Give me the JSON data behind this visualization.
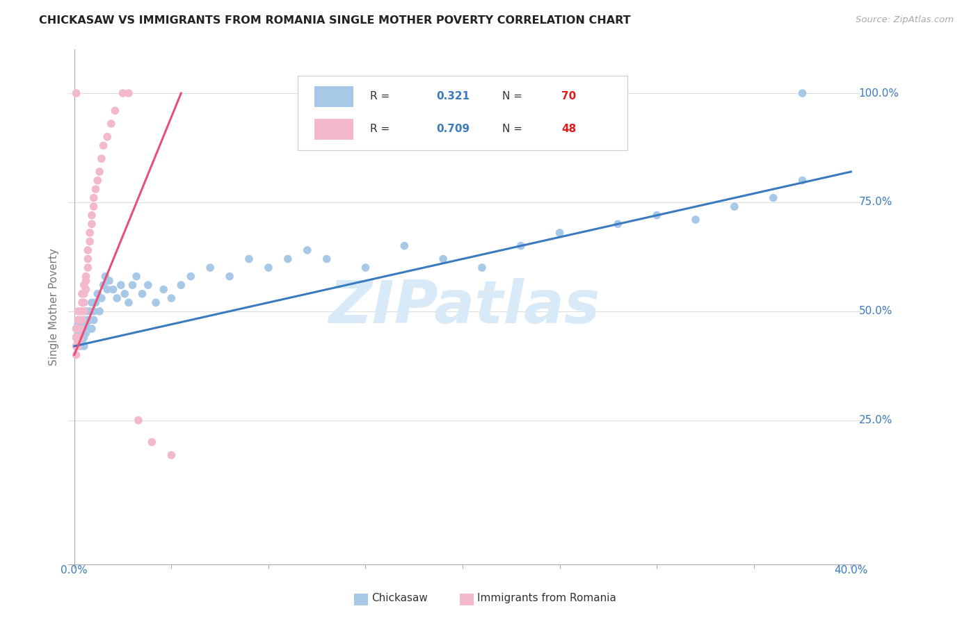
{
  "title": "CHICKASAW VS IMMIGRANTS FROM ROMANIA SINGLE MOTHER POVERTY CORRELATION CHART",
  "source": "Source: ZipAtlas.com",
  "ylabel": "Single Mother Poverty",
  "right_yticks": [
    "25.0%",
    "50.0%",
    "75.0%",
    "100.0%"
  ],
  "right_ytick_vals": [
    0.25,
    0.5,
    0.75,
    1.0
  ],
  "blue_r": "0.321",
  "blue_n": "70",
  "pink_r": "0.709",
  "pink_n": "48",
  "blue_scatter_color": "#a8c8e8",
  "pink_scatter_color": "#f4b8cc",
  "blue_line_color": "#3a7abf",
  "pink_line_color": "#e8507a",
  "grid_color": "#dddddd",
  "text_dark": "#333333",
  "text_blue": "#3a7abf",
  "text_red": "#e31a1c",
  "watermark_color": "#d8eaf8",
  "xlim_min": 0.0,
  "xlim_max": 0.4,
  "ylim_min": 0.0,
  "ylim_max": 1.05,
  "xlabel_ticks": [
    0.0,
    0.05,
    0.1,
    0.15,
    0.2,
    0.25,
    0.3,
    0.35,
    0.4
  ],
  "bottom_legend_1": "Chickasaw",
  "bottom_legend_2": "Immigrants from Romania",
  "blue_x": [
    0.001,
    0.001,
    0.001,
    0.002,
    0.002,
    0.002,
    0.003,
    0.003,
    0.003,
    0.003,
    0.004,
    0.004,
    0.004,
    0.005,
    0.005,
    0.005,
    0.005,
    0.006,
    0.006,
    0.006,
    0.007,
    0.007,
    0.008,
    0.008,
    0.009,
    0.009,
    0.01,
    0.01,
    0.011,
    0.012,
    0.013,
    0.014,
    0.015,
    0.016,
    0.017,
    0.018,
    0.02,
    0.022,
    0.024,
    0.026,
    0.028,
    0.03,
    0.032,
    0.035,
    0.038,
    0.042,
    0.046,
    0.05,
    0.055,
    0.06,
    0.07,
    0.08,
    0.09,
    0.1,
    0.11,
    0.12,
    0.13,
    0.15,
    0.17,
    0.19,
    0.21,
    0.23,
    0.25,
    0.28,
    0.3,
    0.32,
    0.34,
    0.36,
    0.375,
    0.375
  ],
  "blue_y": [
    0.44,
    0.46,
    0.42,
    0.43,
    0.45,
    0.47,
    0.44,
    0.46,
    0.48,
    0.42,
    0.45,
    0.47,
    0.43,
    0.44,
    0.46,
    0.48,
    0.42,
    0.45,
    0.47,
    0.5,
    0.46,
    0.48,
    0.48,
    0.5,
    0.46,
    0.52,
    0.5,
    0.48,
    0.52,
    0.54,
    0.5,
    0.53,
    0.56,
    0.58,
    0.55,
    0.57,
    0.55,
    0.53,
    0.56,
    0.54,
    0.52,
    0.56,
    0.58,
    0.54,
    0.56,
    0.52,
    0.55,
    0.53,
    0.56,
    0.58,
    0.6,
    0.58,
    0.62,
    0.6,
    0.62,
    0.64,
    0.62,
    0.6,
    0.65,
    0.62,
    0.6,
    0.65,
    0.68,
    0.7,
    0.72,
    0.71,
    0.74,
    0.76,
    0.8,
    1.0
  ],
  "pink_x": [
    0.001,
    0.001,
    0.001,
    0.001,
    0.001,
    0.002,
    0.002,
    0.002,
    0.002,
    0.002,
    0.002,
    0.003,
    0.003,
    0.003,
    0.003,
    0.004,
    0.004,
    0.004,
    0.004,
    0.005,
    0.005,
    0.005,
    0.005,
    0.006,
    0.006,
    0.006,
    0.007,
    0.007,
    0.007,
    0.008,
    0.008,
    0.009,
    0.009,
    0.01,
    0.01,
    0.011,
    0.012,
    0.013,
    0.014,
    0.015,
    0.017,
    0.019,
    0.021,
    0.025,
    0.028,
    0.033,
    0.04,
    0.05
  ],
  "pink_y": [
    0.44,
    0.46,
    0.42,
    0.4,
    1.0,
    0.44,
    0.46,
    0.48,
    0.5,
    0.43,
    0.42,
    0.46,
    0.48,
    0.44,
    0.46,
    0.5,
    0.52,
    0.48,
    0.54,
    0.52,
    0.5,
    0.54,
    0.56,
    0.55,
    0.57,
    0.58,
    0.6,
    0.62,
    0.64,
    0.66,
    0.68,
    0.7,
    0.72,
    0.74,
    0.76,
    0.78,
    0.8,
    0.82,
    0.85,
    0.88,
    0.9,
    0.93,
    0.96,
    1.0,
    1.0,
    0.25,
    0.2,
    0.17
  ],
  "blue_trend_x": [
    0.0,
    0.4
  ],
  "blue_trend_y": [
    0.42,
    0.82
  ],
  "pink_trend_x": [
    0.0,
    0.055
  ],
  "pink_trend_y": [
    0.4,
    1.0
  ]
}
